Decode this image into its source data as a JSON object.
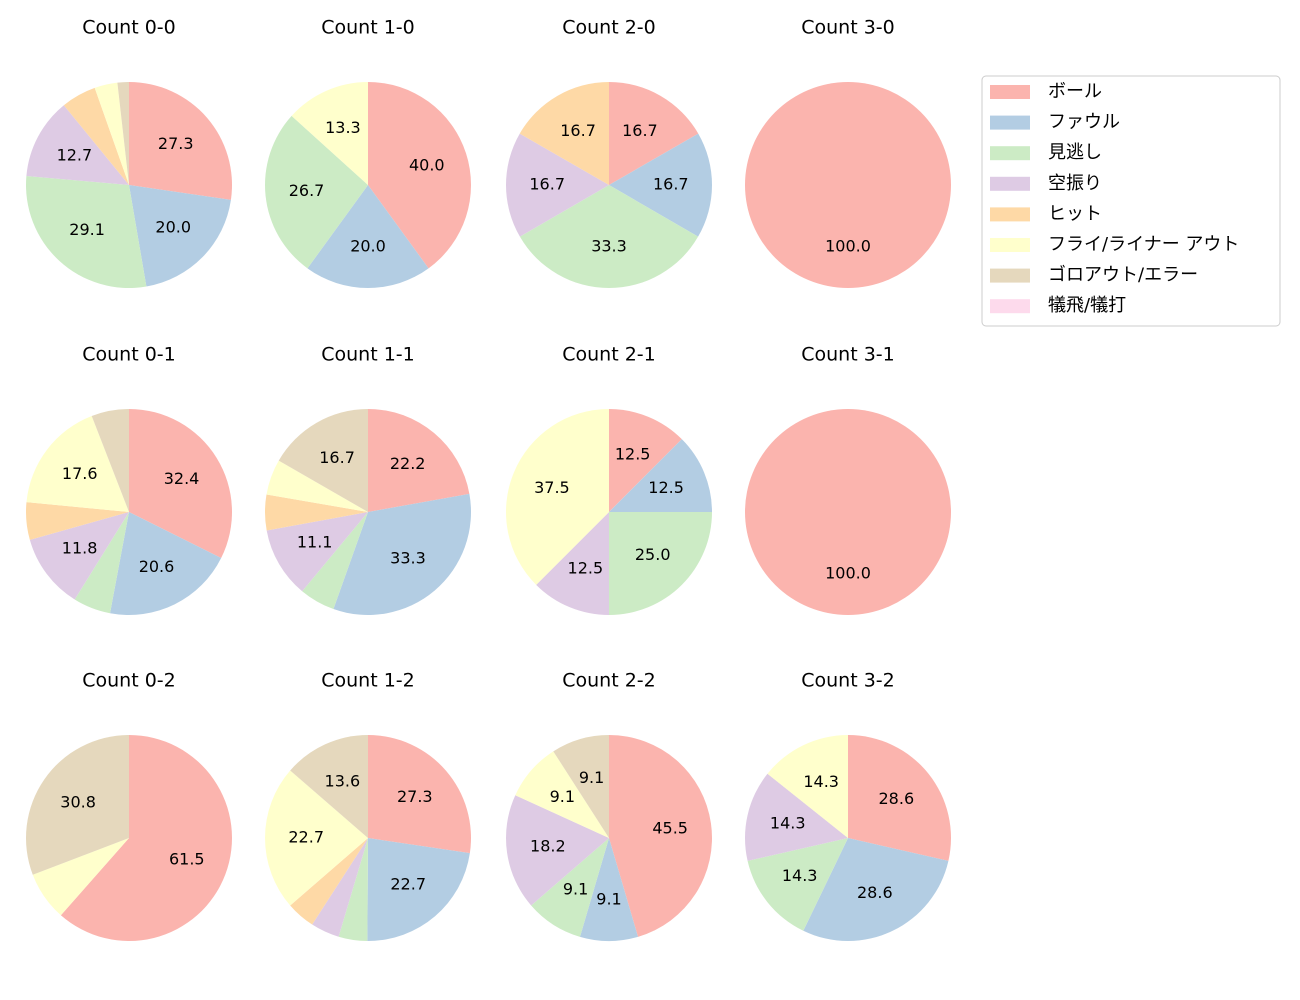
{
  "chart_data": [
    {
      "type": "pie",
      "title": "Count 0-0",
      "categories": [
        "ボール",
        "ファウル",
        "見逃し",
        "空振り",
        "ヒット",
        "フライ/ライナー アウト",
        "ゴロアウト/エラー"
      ],
      "values": [
        27.3,
        20.0,
        29.1,
        12.7,
        5.5,
        3.6,
        1.8
      ],
      "value_labels": [
        "27.3",
        "20.0",
        "29.1",
        "12.7",
        null,
        null,
        null
      ],
      "colors": [
        "#fbb4ae",
        "#b3cde3",
        "#ccebc5",
        "#decbe4",
        "#fed9a6",
        "#ffffcc",
        "#e5d8bd"
      ]
    },
    {
      "type": "pie",
      "title": "Count 1-0",
      "categories": [
        "ボール",
        "ファウル",
        "見逃し",
        "フライ/ライナー アウト"
      ],
      "values": [
        40.0,
        20.0,
        26.7,
        13.3
      ],
      "value_labels": [
        "40.0",
        "20.0",
        "26.7",
        "13.3"
      ],
      "colors": [
        "#fbb4ae",
        "#b3cde3",
        "#ccebc5",
        "#ffffcc"
      ]
    },
    {
      "type": "pie",
      "title": "Count 2-0",
      "categories": [
        "ボール",
        "ファウル",
        "見逃し",
        "空振り",
        "ヒット"
      ],
      "values": [
        16.7,
        16.7,
        33.3,
        16.7,
        16.7
      ],
      "value_labels": [
        "16.7",
        "16.7",
        "33.3",
        "16.7",
        "16.7"
      ],
      "colors": [
        "#fbb4ae",
        "#b3cde3",
        "#ccebc5",
        "#decbe4",
        "#fed9a6"
      ]
    },
    {
      "type": "pie",
      "title": "Count 3-0",
      "categories": [
        "ボール"
      ],
      "values": [
        100
      ],
      "value_labels": [
        "100.0"
      ],
      "colors": [
        "#fbb4ae"
      ]
    },
    {
      "type": "pie",
      "title": "Count 0-1",
      "categories": [
        "ボール",
        "ファウル",
        "見逃し",
        "空振り",
        "ヒット",
        "フライ/ライナー アウト",
        "ゴロアウト/エラー"
      ],
      "values": [
        32.4,
        20.6,
        5.9,
        11.8,
        5.9,
        17.6,
        5.9
      ],
      "value_labels": [
        "32.4",
        "20.6",
        null,
        "11.8",
        null,
        "17.6",
        null
      ],
      "colors": [
        "#fbb4ae",
        "#b3cde3",
        "#ccebc5",
        "#decbe4",
        "#fed9a6",
        "#ffffcc",
        "#e5d8bd"
      ]
    },
    {
      "type": "pie",
      "title": "Count 1-1",
      "categories": [
        "ボール",
        "ファウル",
        "見逃し",
        "空振り",
        "ヒット",
        "フライ/ライナー アウト",
        "ゴロアウト/エラー"
      ],
      "values": [
        22.2,
        33.3,
        5.6,
        11.1,
        5.6,
        5.6,
        16.7
      ],
      "value_labels": [
        "22.2",
        "33.3",
        null,
        "11.1",
        null,
        null,
        "16.7"
      ],
      "colors": [
        "#fbb4ae",
        "#b3cde3",
        "#ccebc5",
        "#decbe4",
        "#fed9a6",
        "#ffffcc",
        "#e5d8bd"
      ]
    },
    {
      "type": "pie",
      "title": "Count 2-1",
      "categories": [
        "ボール",
        "ファウル",
        "見逃し",
        "空振り",
        "フライ/ライナー アウト"
      ],
      "values": [
        12.5,
        12.5,
        25.0,
        12.5,
        37.5
      ],
      "value_labels": [
        "12.5",
        "12.5",
        "25.0",
        "12.5",
        "37.5"
      ],
      "colors": [
        "#fbb4ae",
        "#b3cde3",
        "#ccebc5",
        "#decbe4",
        "#ffffcc"
      ]
    },
    {
      "type": "pie",
      "title": "Count 3-1",
      "categories": [
        "ボール"
      ],
      "values": [
        100
      ],
      "value_labels": [
        "100.0"
      ],
      "colors": [
        "#fbb4ae"
      ]
    },
    {
      "type": "pie",
      "title": "Count 0-2",
      "categories": [
        "ボール",
        "フライ/ライナー アウト",
        "ゴロアウト/エラー"
      ],
      "values": [
        61.5,
        7.7,
        30.8
      ],
      "value_labels": [
        "61.5",
        null,
        "30.8"
      ],
      "colors": [
        "#fbb4ae",
        "#ffffcc",
        "#e5d8bd"
      ]
    },
    {
      "type": "pie",
      "title": "Count 1-2",
      "categories": [
        "ボール",
        "ファウル",
        "見逃し",
        "空振り",
        "ヒット",
        "フライ/ライナー アウト",
        "ゴロアウト/エラー"
      ],
      "values": [
        27.3,
        22.7,
        4.5,
        4.5,
        4.5,
        22.7,
        13.6
      ],
      "value_labels": [
        "27.3",
        "22.7",
        null,
        null,
        null,
        "22.7",
        "13.6"
      ],
      "colors": [
        "#fbb4ae",
        "#b3cde3",
        "#ccebc5",
        "#decbe4",
        "#fed9a6",
        "#ffffcc",
        "#e5d8bd"
      ]
    },
    {
      "type": "pie",
      "title": "Count 2-2",
      "categories": [
        "ボール",
        "ファウル",
        "見逃し",
        "空振り",
        "フライ/ライナー アウト",
        "ゴロアウト/エラー"
      ],
      "values": [
        45.5,
        9.1,
        9.1,
        18.2,
        9.1,
        9.1
      ],
      "value_labels": [
        "45.5",
        "9.1",
        "9.1",
        "18.2",
        "9.1",
        "9.1"
      ],
      "colors": [
        "#fbb4ae",
        "#b3cde3",
        "#ccebc5",
        "#decbe4",
        "#ffffcc",
        "#e5d8bd"
      ]
    },
    {
      "type": "pie",
      "title": "Count 3-2",
      "categories": [
        "ボール",
        "ファウル",
        "見逃し",
        "空振り",
        "フライ/ライナー アウト"
      ],
      "values": [
        28.6,
        28.6,
        14.3,
        14.3,
        14.3
      ],
      "value_labels": [
        "28.6",
        "28.6",
        "14.3",
        "14.3",
        "14.3"
      ],
      "colors": [
        "#fbb4ae",
        "#b3cde3",
        "#ccebc5",
        "#decbe4",
        "#ffffcc"
      ]
    }
  ],
  "legend": {
    "position": "upper right",
    "labels": [
      "ボール",
      "ファウル",
      "見逃し",
      "空振り",
      "ヒット",
      "フライ/ライナー アウト",
      "ゴロアウト/エラー",
      "犠飛/犠打"
    ],
    "colors": [
      "#fbb4ae",
      "#b3cde3",
      "#ccebc5",
      "#decbe4",
      "#fed9a6",
      "#ffffcc",
      "#e5d8bd",
      "#fddaec"
    ]
  }
}
